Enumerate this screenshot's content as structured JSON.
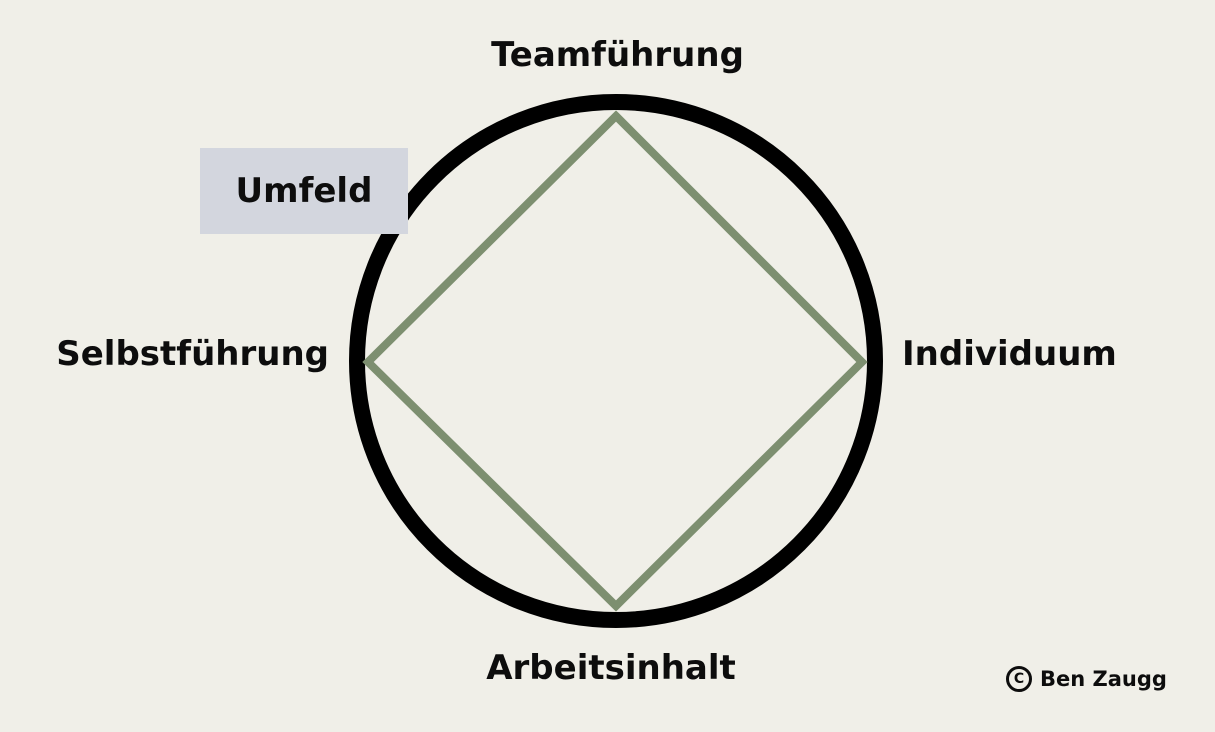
{
  "colors": {
    "background": "#f0efe8",
    "circle_stroke": "#000000",
    "diamond_stroke": "#7d8f70",
    "box_fill": "#d3d6de",
    "text": "#0d0d0d"
  },
  "labels": {
    "top": "Teamführung",
    "right": "Individuum",
    "bottom": "Arbeitsinhalt",
    "left": "Selbstführung"
  },
  "umfeld_box": {
    "label": "Umfeld"
  },
  "copyright": {
    "symbol": "C",
    "text": "Ben Zaugg",
    "icon": "copyright-icon"
  }
}
